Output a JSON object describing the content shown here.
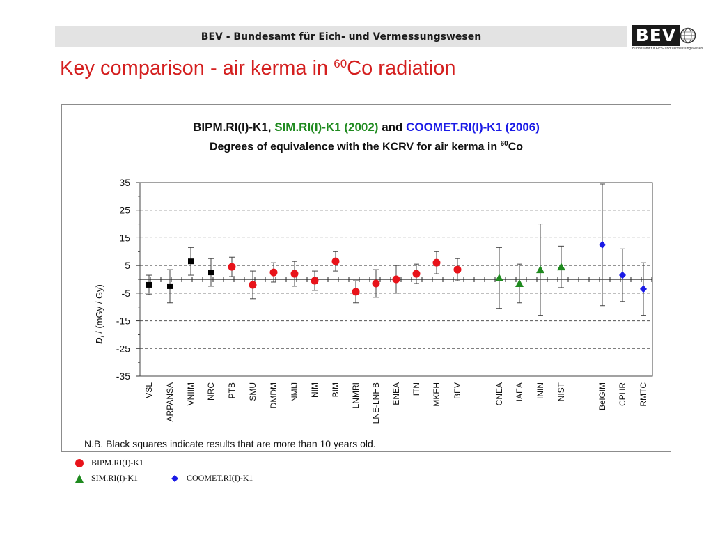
{
  "header": {
    "text": "BEV - Bundesamt für Eich- und Vermessungswesen"
  },
  "logo": {
    "word": "BEV",
    "subtitle": "Bundesamt für Eich- und Vermessungswesen",
    "icon": "globe-icon"
  },
  "slide": {
    "title_main": "Key comparison - air kerma in ",
    "title_sup": "60",
    "title_tail": "Co radiation"
  },
  "chart_title": {
    "part1": "BIPM.RI(I)-K1, ",
    "part2": "SIM.RI(I)-K1 (2002)",
    "part3": " and ",
    "part4": "COOMET.RI(I)-K1 (2006)",
    "line2_main": "Degrees of equivalence with the KCRV for air kerma in ",
    "line2_sup": "60",
    "line2_tail": "Co"
  },
  "note": "N.B. Black squares indicate results that are more than 10 years old.",
  "legend": [
    {
      "label": "BIPM.RI(I)-K1",
      "symbol": "circle",
      "color": "#e8131a"
    },
    {
      "label": "SIM.RI(I)-K1",
      "symbol": "triangle",
      "color": "#1f8a1f"
    },
    {
      "label": "COOMET.RI(I)-K1",
      "symbol": "diamond",
      "color": "#1a1ae6"
    }
  ],
  "colors": {
    "title": "#d41f1f",
    "bipm": "#e8131a",
    "sim": "#1f8a1f",
    "coomet": "#1a1ae6",
    "old": "#000000"
  },
  "chart_data": {
    "type": "scatter",
    "ylabel_main": "D",
    "ylabel_sub": "i",
    "ylabel_tail": " / (mGy / Gy)",
    "ylim": [
      -35,
      35
    ],
    "yticks": [
      35,
      25,
      15,
      5,
      -5,
      -15,
      -25,
      -35
    ],
    "grid": "dashed horizontal",
    "points": [
      {
        "name": "VSL",
        "value": -2.0,
        "err": 3.5,
        "symbol": "square",
        "color": "#000000"
      },
      {
        "name": "ARPANSA",
        "value": -2.5,
        "err": 6.0,
        "symbol": "square",
        "color": "#000000"
      },
      {
        "name": "VNIIM",
        "value": 6.5,
        "err": 5.0,
        "symbol": "square",
        "color": "#000000"
      },
      {
        "name": "NRC",
        "value": 2.5,
        "err": 5.0,
        "symbol": "square",
        "color": "#000000"
      },
      {
        "name": "PTB",
        "value": 4.5,
        "err": 3.5,
        "symbol": "circle",
        "color": "#e8131a"
      },
      {
        "name": "SMU",
        "value": -2.0,
        "err": 5.0,
        "symbol": "circle",
        "color": "#e8131a"
      },
      {
        "name": "DMDM",
        "value": 2.5,
        "err": 3.5,
        "symbol": "circle",
        "color": "#e8131a"
      },
      {
        "name": "NMIJ",
        "value": 2.0,
        "err": 4.5,
        "symbol": "circle",
        "color": "#e8131a"
      },
      {
        "name": "NIM",
        "value": -0.5,
        "err": 3.5,
        "symbol": "circle",
        "color": "#e8131a"
      },
      {
        "name": "BIM",
        "value": 6.5,
        "err": 3.5,
        "symbol": "circle",
        "color": "#e8131a"
      },
      {
        "name": "LNMRI",
        "value": -4.5,
        "err": 4.0,
        "symbol": "circle",
        "color": "#e8131a"
      },
      {
        "name": "LNE-LNHB",
        "value": -1.5,
        "err": 5.0,
        "symbol": "circle",
        "color": "#e8131a"
      },
      {
        "name": "ENEA",
        "value": 0.0,
        "err": 5.0,
        "symbol": "circle",
        "color": "#e8131a"
      },
      {
        "name": "ITN",
        "value": 2.0,
        "err": 3.5,
        "symbol": "circle",
        "color": "#e8131a"
      },
      {
        "name": "MKEH",
        "value": 6.0,
        "err": 4.0,
        "symbol": "circle",
        "color": "#e8131a"
      },
      {
        "name": "BEV",
        "value": 3.5,
        "err": 4.0,
        "symbol": "circle",
        "color": "#e8131a"
      },
      {
        "name": "CNEA",
        "value": 0.5,
        "err": 11.0,
        "symbol": "triangle",
        "color": "#1f8a1f"
      },
      {
        "name": "IAEA",
        "value": -1.5,
        "err": 7.0,
        "symbol": "triangle",
        "color": "#1f8a1f"
      },
      {
        "name": "ININ",
        "value": 3.5,
        "err": 16.5,
        "symbol": "triangle",
        "color": "#1f8a1f"
      },
      {
        "name": "NIST",
        "value": 4.5,
        "err": 7.5,
        "symbol": "triangle",
        "color": "#1f8a1f"
      },
      {
        "name": "BelGIM",
        "value": 12.5,
        "err": 22.0,
        "symbol": "diamond",
        "color": "#1a1ae6"
      },
      {
        "name": "CPHR",
        "value": 1.5,
        "err": 9.5,
        "symbol": "diamond",
        "color": "#1a1ae6"
      },
      {
        "name": "RMTC",
        "value": -3.5,
        "err": 9.5,
        "symbol": "diamond",
        "color": "#1a1ae6"
      }
    ]
  }
}
